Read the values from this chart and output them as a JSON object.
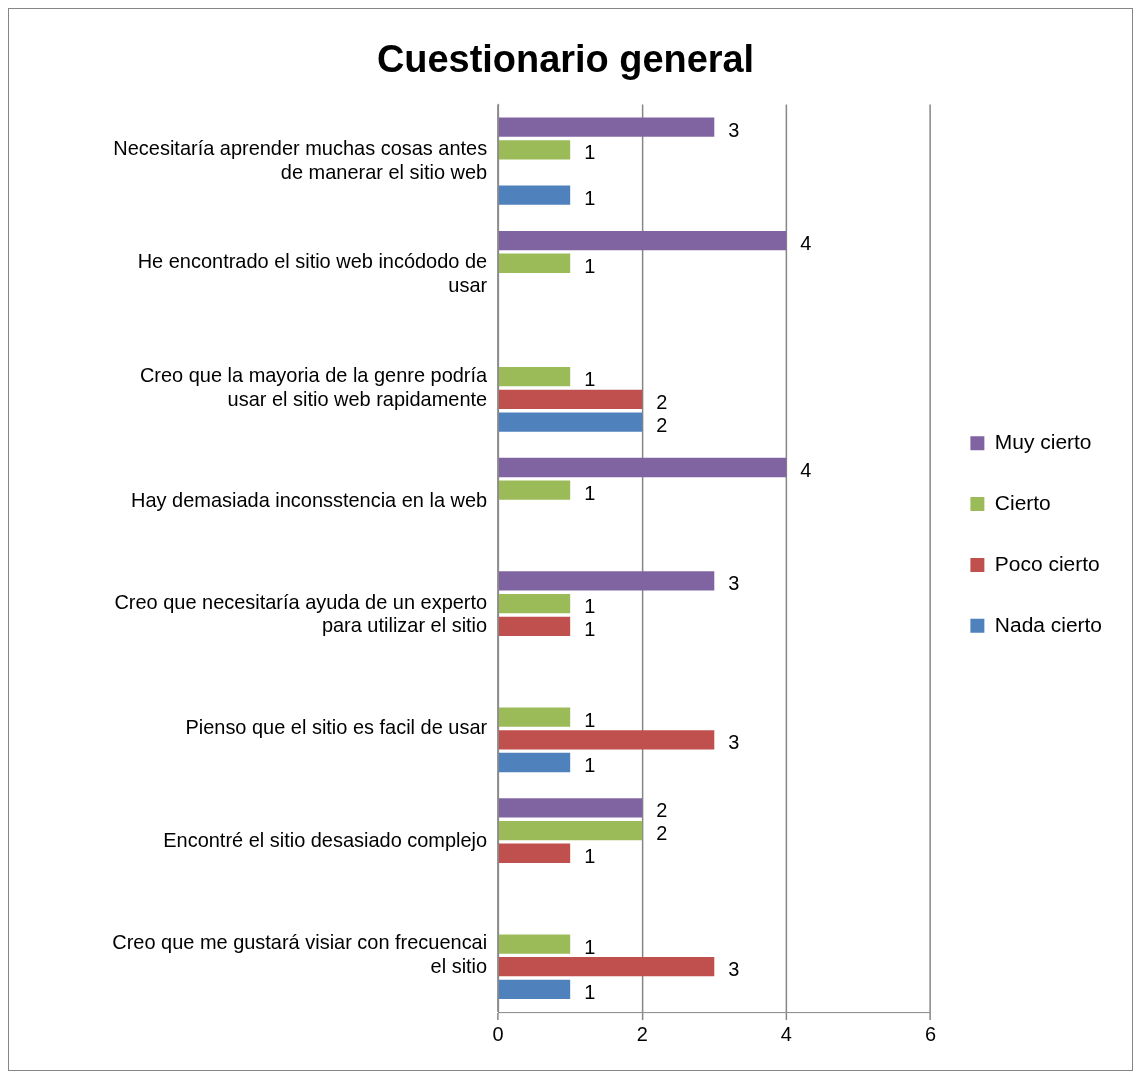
{
  "chart_data": {
    "type": "bar",
    "orientation": "horizontal",
    "title": "Cuestionario general",
    "categories": [
      "Necesitaría aprender muchas cosas antes de manerar el sitio web",
      "He encontrado el sitio web incódodo de usar",
      "Creo que la mayoria de la genre podría usar el sitio web rapidamente",
      "Hay demasiada inconsstencia en la web",
      "Creo que necesitaría ayuda de un experto para utilizar el sitio",
      "Pienso que el sitio es facil de usar",
      "Encontré el sitio desasiado complejo",
      "Creo que me gustará visiar con frecuencai el sitio"
    ],
    "series": [
      {
        "name": "Muy cierto",
        "color": "#8064a2",
        "values": [
          3,
          4,
          null,
          4,
          3,
          null,
          2,
          null
        ]
      },
      {
        "name": "Cierto",
        "color": "#9bbb59",
        "values": [
          1,
          1,
          1,
          1,
          1,
          1,
          2,
          1
        ]
      },
      {
        "name": "Poco cierto",
        "color": "#c0504d",
        "values": [
          null,
          null,
          2,
          null,
          1,
          3,
          1,
          3
        ]
      },
      {
        "name": "Nada cierto",
        "color": "#4f81bd",
        "values": [
          1,
          null,
          2,
          null,
          null,
          1,
          null,
          1
        ]
      }
    ],
    "xlim": [
      0,
      6
    ],
    "xticks": [
      0,
      2,
      4,
      6
    ],
    "grid": "x",
    "legend": "right",
    "data_labels": true
  }
}
